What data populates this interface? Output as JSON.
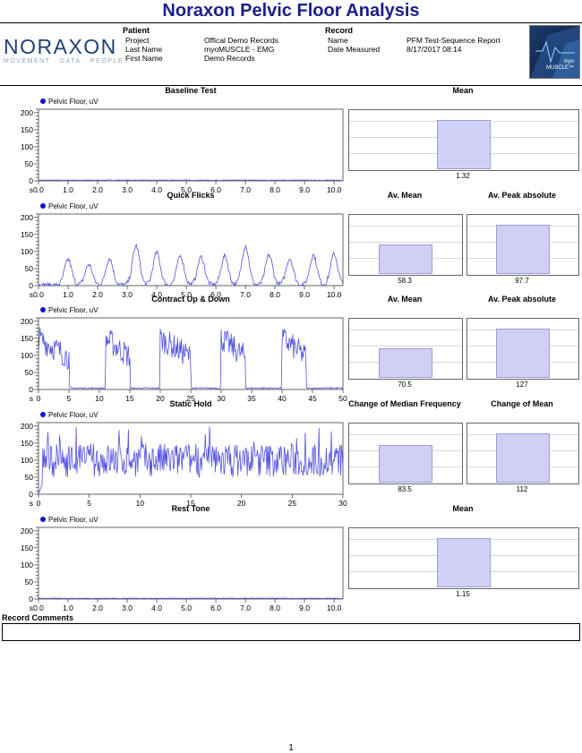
{
  "report_title": "Noraxon Pelvic Floor Analysis",
  "logo": {
    "word": "NORAXON",
    "tagline": "MOVEMENT · DATA · PEOPLE"
  },
  "badge": {
    "line1": "myo",
    "line2": "MUSCLE™"
  },
  "patient": {
    "heading": "Patient",
    "rows": [
      {
        "label": "Project",
        "value": "Offical Demo Records"
      },
      {
        "label": "Last Name",
        "value": "myoMUSCLE - EMG"
      },
      {
        "label": "First Name",
        "value": "Demo Records"
      }
    ]
  },
  "record": {
    "heading": "Record",
    "rows": [
      {
        "label": "Name",
        "value": "PFM Test-Sequence Report"
      },
      {
        "label": "Date Measured",
        "value": "8/17/2017 08:14"
      }
    ]
  },
  "record_comments": {
    "title": "Record Comments",
    "text": ""
  },
  "page_number": "1",
  "series_color": "#5252e0",
  "chart_data": [
    {
      "type": "line",
      "title": "Baseline Test",
      "series_name": "Pelvic Floor, uV",
      "x_unit": "s",
      "ylim": [
        0,
        210
      ],
      "yticks": [
        0,
        50,
        100,
        150,
        200
      ],
      "xlim": [
        0,
        10.3
      ],
      "xticks": [
        "0.0",
        "1.0",
        "2.0",
        "3.0",
        "4.0",
        "5.0",
        "6.0",
        "7.0",
        "8.0",
        "9.0",
        "10.0"
      ],
      "signal": "baseline",
      "summary": [
        {
          "label": "Mean",
          "value": "1.32",
          "fraction": 0.92
        }
      ]
    },
    {
      "type": "line",
      "title": "Quick Flicks",
      "series_name": "Pelvic Floor, uV",
      "x_unit": "s",
      "ylim": [
        0,
        210
      ],
      "yticks": [
        0,
        50,
        100,
        150,
        200
      ],
      "xlim": [
        0,
        10.3
      ],
      "xticks": [
        "0.0",
        "1.0",
        "2.0",
        "3.0",
        "4.0",
        "5.0",
        "6.0",
        "7.0",
        "8.0",
        "9.0",
        "10.0"
      ],
      "signal": "flicks",
      "summary": [
        {
          "label": "Av. Mean",
          "value": "58.3",
          "fraction": 0.55
        },
        {
          "label": "Av. Peak absolute",
          "value": "97.7",
          "fraction": 0.92
        }
      ]
    },
    {
      "type": "line",
      "title": "Contract Up & Down",
      "series_name": "Pelvic Floor, uV",
      "x_unit": "s",
      "ylim": [
        0,
        210
      ],
      "yticks": [
        0,
        50,
        100,
        150,
        200
      ],
      "xlim": [
        0,
        50
      ],
      "xticks": [
        "0",
        "5",
        "10",
        "15",
        "20",
        "25",
        "30",
        "35",
        "40",
        "45",
        "50"
      ],
      "signal": "updown",
      "summary": [
        {
          "label": "Av. Mean",
          "value": "70.5",
          "fraction": 0.55
        },
        {
          "label": "Av. Peak absolute",
          "value": "127",
          "fraction": 0.92
        }
      ]
    },
    {
      "type": "line",
      "title": "Static Hold",
      "series_name": "Pelvic Floor, uV",
      "x_unit": "s",
      "ylim": [
        0,
        210
      ],
      "yticks": [
        0,
        50,
        100,
        150,
        200
      ],
      "xlim": [
        0,
        30
      ],
      "xticks": [
        "0",
        "5",
        "10",
        "15",
        "20",
        "25",
        "30"
      ],
      "signal": "hold",
      "summary": [
        {
          "label": "Change of Median Frequency",
          "value": "83.5",
          "fraction": 0.7
        },
        {
          "label": "Change of Mean",
          "value": "112",
          "fraction": 0.92
        }
      ]
    },
    {
      "type": "line",
      "title": "Rest Tone",
      "series_name": "Pelvic Floor, uV",
      "x_unit": "s",
      "ylim": [
        0,
        210
      ],
      "yticks": [
        0,
        50,
        100,
        150,
        200
      ],
      "xlim": [
        0,
        10.3
      ],
      "xticks": [
        "0.0",
        "1.0",
        "2.0",
        "3.0",
        "4.0",
        "5.0",
        "6.0",
        "7.0",
        "8.0",
        "9.0",
        "10.0"
      ],
      "signal": "baseline",
      "summary": [
        {
          "label": "Mean",
          "value": "1.15",
          "fraction": 0.92
        }
      ]
    }
  ]
}
